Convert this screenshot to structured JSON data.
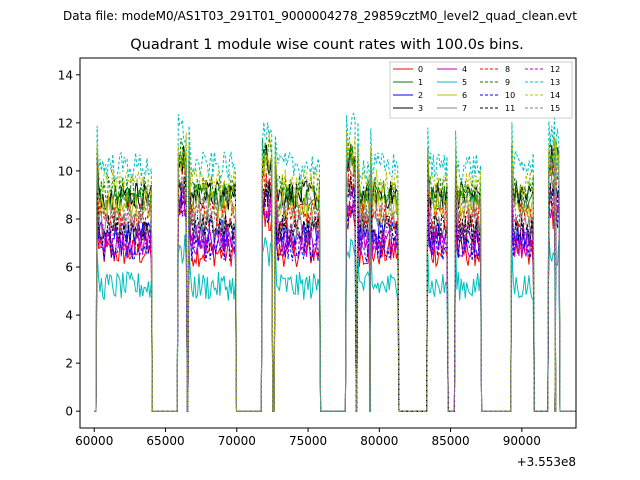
{
  "chart_data": {
    "type": "line",
    "suptitle": "Data file: modeM0/AS1T03_291T01_9000004278_29859cztM0_level2_quad_clean.evt",
    "title": "Quadrant 1 module wise count rates with 100.0s bins.",
    "xlabel": "",
    "ylabel": "",
    "x_offset_label": "+3.553e8",
    "xlim": [
      59000,
      93800
    ],
    "ylim": [
      -0.7,
      14.7
    ],
    "x_ticks": [
      60000,
      65000,
      70000,
      75000,
      80000,
      85000,
      90000
    ],
    "x_tick_labels": [
      "60000",
      "65000",
      "70000",
      "75000",
      "80000",
      "85000",
      "90000"
    ],
    "y_ticks": [
      0,
      2,
      4,
      6,
      8,
      10,
      12,
      14
    ],
    "y_tick_labels": [
      "0",
      "2",
      "4",
      "6",
      "8",
      "10",
      "12",
      "14"
    ],
    "grid": false,
    "legend_position": "top-right",
    "legend_columns": 4,
    "segments": [
      [
        60200,
        64000
      ],
      [
        65900,
        66450
      ],
      [
        66650,
        69900
      ],
      [
        71800,
        72450
      ],
      [
        72700,
        75800
      ],
      [
        77700,
        78300
      ],
      [
        78500,
        79300
      ],
      [
        79400,
        81300
      ],
      [
        83400,
        84750
      ],
      [
        85350,
        87100
      ],
      [
        89300,
        90800
      ],
      [
        91900,
        92300
      ],
      [
        92400,
        92600
      ]
    ],
    "gap_value": 0,
    "series": [
      {
        "name": "0",
        "color": "#ff0000",
        "dashed": false,
        "level": 6.6
      },
      {
        "name": "1",
        "color": "#008000",
        "dashed": false,
        "level": 8.9
      },
      {
        "name": "2",
        "color": "#0000ff",
        "dashed": false,
        "level": 7.4
      },
      {
        "name": "3",
        "color": "#000000",
        "dashed": false,
        "level": 9.0
      },
      {
        "name": "4",
        "color": "#bf00bf",
        "dashed": false,
        "level": 7.0
      },
      {
        "name": "5",
        "color": "#00bfbf",
        "dashed": false,
        "level": 5.2
      },
      {
        "name": "6",
        "color": "#bfbf00",
        "dashed": false,
        "level": 8.6
      },
      {
        "name": "7",
        "color": "#808080",
        "dashed": false,
        "level": 7.8
      },
      {
        "name": "8",
        "color": "#ff0000",
        "dashed": true,
        "level": 8.1
      },
      {
        "name": "9",
        "color": "#008000",
        "dashed": true,
        "level": 9.2
      },
      {
        "name": "10",
        "color": "#0000ff",
        "dashed": true,
        "level": 6.8
      },
      {
        "name": "11",
        "color": "#000000",
        "dashed": true,
        "level": 7.6
      },
      {
        "name": "12",
        "color": "#bf00bf",
        "dashed": true,
        "level": 7.2
      },
      {
        "name": "13",
        "color": "#00bfbf",
        "dashed": true,
        "level": 10.2
      },
      {
        "name": "14",
        "color": "#bfbf00",
        "dashed": true,
        "level": 9.5
      },
      {
        "name": "15",
        "color": "#808080",
        "dashed": true,
        "level": 8.4
      }
    ]
  }
}
